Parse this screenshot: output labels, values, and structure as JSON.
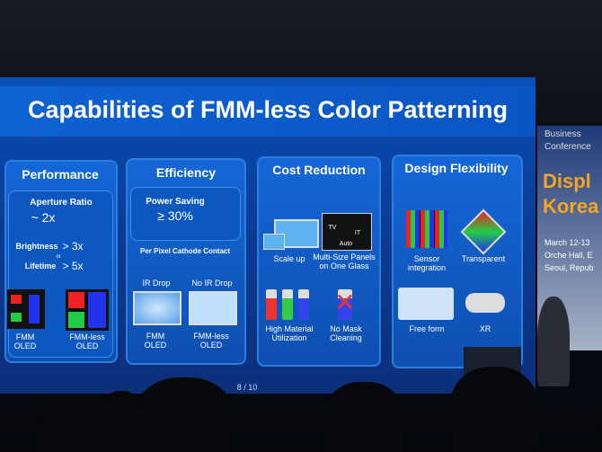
{
  "slide": {
    "title": "Capabilities of FMM-less Color Patterning",
    "page": "8 / 10",
    "performance": {
      "heading": "Performance",
      "aperture": "Aperture Ratio",
      "aperture_value": "~ 2x",
      "brightness": "Brightness",
      "brightness_value": "> 3x",
      "or": "or",
      "lifetime": "Lifetime",
      "lifetime_value": "> 5x",
      "left_label": "FMM\nOLED",
      "right_label": "FMM-less\nOLED"
    },
    "efficiency": {
      "heading": "Efficiency",
      "power": "Power Saving",
      "power_value": "≥ 30%",
      "cathode": "Per Pixel Cathode Contact",
      "ir_drop": "IR Drop",
      "no_ir_drop": "No IR Drop",
      "left_label": "FMM\nOLED",
      "right_label": "FMM-less\nOLED"
    },
    "cost": {
      "heading": "Cost Reduction",
      "scale_up": "Scale up",
      "multi_size": "Multi-Size Panels\non One Glass",
      "tv": "TV",
      "it": "IT",
      "auto": "Auto",
      "material": "High Material\nUtilization",
      "no_mask": "No Mask\nCleaning"
    },
    "design": {
      "heading": "Design Flexibility",
      "sensor": "Sensor\nintegration",
      "transparent": "Transparent",
      "free_form": "Free form",
      "xr": "XR"
    }
  },
  "banner": {
    "line1": "Business",
    "line2": "Conference",
    "line3": "Displ",
    "line4": "Korea",
    "line5": "March 12-13",
    "line6": "Orche Hall, E",
    "line7": "Seoul, Repub"
  }
}
